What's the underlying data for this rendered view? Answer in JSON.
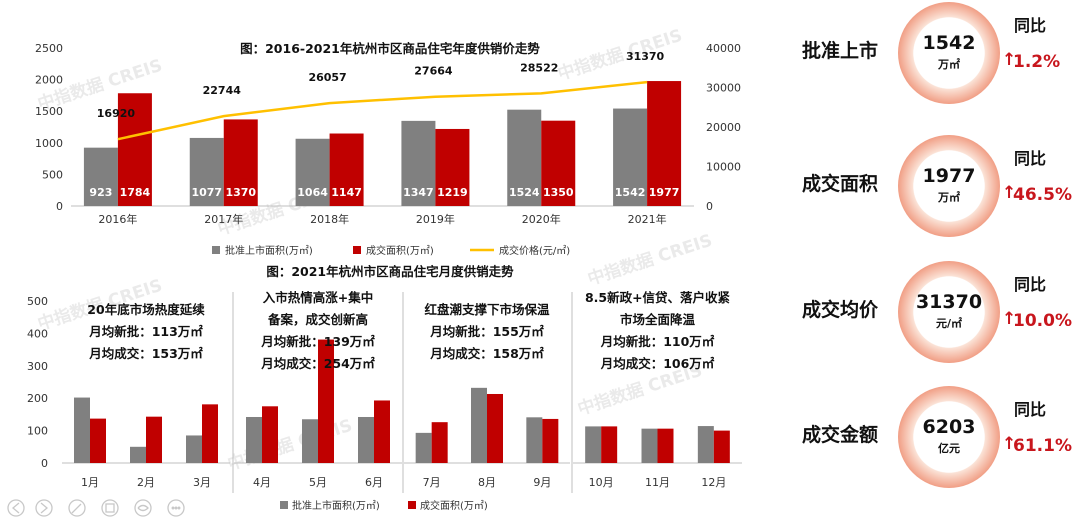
{
  "chart_data": [
    {
      "type": "bar",
      "title": "图：2016-2021年杭州市区商品住宅年度供销价走势",
      "categories": [
        "2016年",
        "2017年",
        "2018年",
        "2019年",
        "2020年",
        "2021年"
      ],
      "series": [
        {
          "name": "批准上市面积(万㎡)",
          "values": [
            923,
            1077,
            1064,
            1347,
            1524,
            1542
          ],
          "color": "#808080"
        },
        {
          "name": "成交面积(万㎡)",
          "values": [
            1784,
            1370,
            1147,
            1219,
            1350,
            1977
          ],
          "color": "#c00000"
        },
        {
          "name": "成交价格(元/㎡)",
          "type": "line",
          "axis": "right",
          "values": [
            16920,
            22744,
            26057,
            27664,
            28522,
            31370
          ],
          "color": "#ffc000"
        }
      ],
      "ylim": [
        0,
        2500
      ],
      "yticks": [
        0,
        500,
        1000,
        1500,
        2000,
        2500
      ],
      "y2lim": [
        0,
        40000
      ],
      "y2ticks": [
        0,
        10000,
        20000,
        30000,
        40000
      ],
      "legend_position": "bottom",
      "grid": false
    },
    {
      "type": "bar",
      "title": "图：2021年杭州市区商品住宅月度供销走势",
      "categories": [
        "1月",
        "2月",
        "3月",
        "4月",
        "5月",
        "6月",
        "7月",
        "8月",
        "9月",
        "10月",
        "11月",
        "12月"
      ],
      "series": [
        {
          "name": "批准上市面积(万㎡)",
          "values": [
            202,
            50,
            85,
            142,
            135,
            142,
            93,
            232,
            141,
            113,
            106,
            114
          ],
          "color": "#808080"
        },
        {
          "name": "成交面积(万㎡)",
          "values": [
            137,
            143,
            181,
            175,
            381,
            193,
            126,
            213,
            136,
            113,
            106,
            100
          ],
          "color": "#c00000"
        }
      ],
      "ylim": [
        0,
        500
      ],
      "yticks": [
        0,
        100,
        200,
        300,
        400,
        500
      ],
      "legend_position": "bottom",
      "grid": false,
      "annotations": [
        {
          "lines": [
            "20年底市场热度延续",
            "月均新批：113万㎡",
            "月均成交：153万㎡"
          ]
        },
        {
          "lines": [
            "入市热情高涨+集中",
            "备案，成交创新高",
            "月均新批：139万㎡",
            "月均成交：254万㎡"
          ]
        },
        {
          "lines": [
            "红盘潮支撑下市场保温",
            "月均新批：155万㎡",
            "月均成交：158万㎡"
          ]
        },
        {
          "lines": [
            "8.5新政+信贷、落户收紧",
            "市场全面降温",
            "月均新批：110万㎡",
            "月均成交：106万㎡"
          ]
        }
      ]
    }
  ],
  "watermark": "中指数据 CREIS",
  "kpis": [
    {
      "label": "批准上市",
      "value": "1542",
      "unit": "万㎡",
      "yoy_label": "同比",
      "arrow": "↑",
      "change": "1.2%"
    },
    {
      "label": "成交面积",
      "value": "1977",
      "unit": "万㎡",
      "yoy_label": "同比",
      "arrow": "↑",
      "change": "46.5%"
    },
    {
      "label": "成交均价",
      "value": "31370",
      "unit": "元/㎡",
      "yoy_label": "同比",
      "arrow": "↑",
      "change": "10.0%"
    },
    {
      "label": "成交金额",
      "value": "6203",
      "unit": "亿元",
      "yoy_label": "同比",
      "arrow": "↑",
      "change": "61.1%"
    }
  ]
}
